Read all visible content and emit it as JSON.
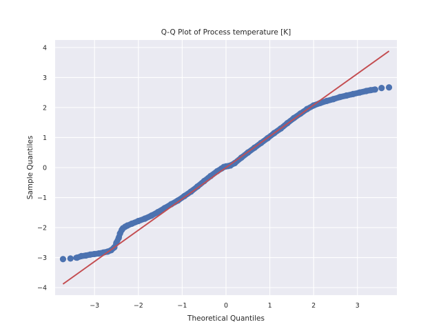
{
  "chart_data": {
    "type": "scatter",
    "title": "Q-Q Plot of Process temperature [K]",
    "xlabel": "Theoretical Quantiles",
    "ylabel": "Sample Quantiles",
    "xlim": [
      -3.9,
      3.9
    ],
    "ylim": [
      -4.25,
      4.25
    ],
    "xticks": [
      -3,
      -2,
      -1,
      0,
      1,
      2,
      3
    ],
    "xtick_labels": [
      "−3",
      "−2",
      "−1",
      "0",
      "1",
      "2",
      "3"
    ],
    "yticks": [
      -4,
      -3,
      -2,
      -1,
      0,
      1,
      2,
      3,
      4
    ],
    "ytick_labels": [
      "−4",
      "−3",
      "−2",
      "−1",
      "0",
      "1",
      "2",
      "3",
      "4"
    ],
    "grid": true,
    "background_color": "#eaeaf2",
    "point_color": "#4c72b0",
    "line_color": "#c44e52",
    "reference_line": {
      "x": [
        -3.72,
        3.72
      ],
      "y": [
        -3.88,
        3.88
      ]
    },
    "series": [
      {
        "x": [
          -3.72,
          -3.55,
          -3.4,
          -3.3,
          -3.2,
          -3.1,
          -3.0,
          -2.9,
          -2.8,
          -2.7,
          -2.62,
          -2.55,
          -2.5,
          -2.45,
          -2.42,
          -2.38,
          -2.35,
          -2.3,
          -2.25,
          -2.15,
          -2.0,
          -1.85,
          -1.7,
          -1.55,
          -1.4,
          -1.25,
          -1.1,
          -0.95,
          -0.8,
          -0.65,
          -0.5,
          -0.35,
          -0.2,
          -0.1,
          -0.05,
          0.0,
          0.05,
          0.1,
          0.2,
          0.35,
          0.5,
          0.65,
          0.8,
          0.95,
          1.1,
          1.25,
          1.4,
          1.55,
          1.7,
          1.85,
          2.0,
          2.15,
          2.3,
          2.45,
          2.6,
          2.75,
          2.9,
          3.05,
          3.2,
          3.3,
          3.4,
          3.55,
          3.72
        ],
        "y": [
          -3.05,
          -3.03,
          -3.0,
          -2.95,
          -2.93,
          -2.9,
          -2.88,
          -2.86,
          -2.83,
          -2.8,
          -2.75,
          -2.66,
          -2.5,
          -2.35,
          -2.2,
          -2.08,
          -2.02,
          -1.97,
          -1.93,
          -1.87,
          -1.78,
          -1.7,
          -1.6,
          -1.48,
          -1.35,
          -1.22,
          -1.1,
          -0.95,
          -0.8,
          -0.63,
          -0.45,
          -0.28,
          -0.12,
          -0.03,
          0.02,
          0.04,
          0.05,
          0.07,
          0.15,
          0.33,
          0.5,
          0.66,
          0.82,
          0.98,
          1.15,
          1.3,
          1.48,
          1.65,
          1.8,
          1.95,
          2.07,
          2.15,
          2.22,
          2.28,
          2.35,
          2.4,
          2.45,
          2.5,
          2.55,
          2.58,
          2.6,
          2.65,
          2.67
        ]
      }
    ]
  }
}
